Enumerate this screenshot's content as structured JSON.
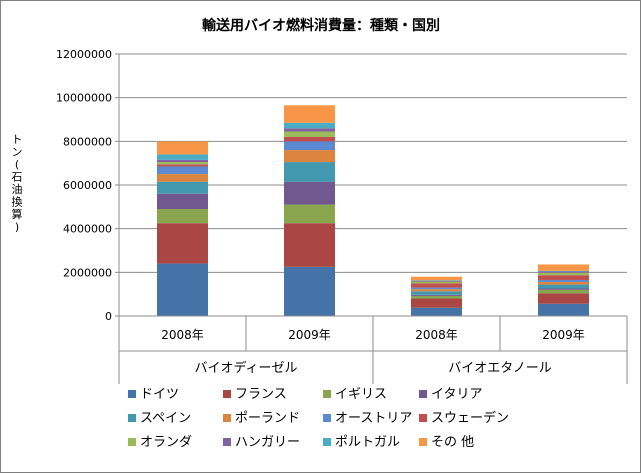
{
  "chart_data": {
    "type": "bar",
    "stacked": true,
    "title": "輸送用バイオ燃料消費量：種類・国別",
    "ylabel": "トン(石油換算)",
    "ylim": [
      0,
      12000000
    ],
    "yticks": [
      "0",
      "2000000",
      "4000000",
      "6000000",
      "8000000",
      "10000000",
      "12000000"
    ],
    "grid": true,
    "legend_position": "bottom",
    "groups": [
      {
        "label": "バイオディーゼル",
        "categories": [
          "2008年",
          "2009年"
        ]
      },
      {
        "label": "バイオエタノール",
        "categories": [
          "2008年",
          "2009年"
        ]
      }
    ],
    "categories": [
      "2008年",
      "2009年",
      "2008年",
      "2009年"
    ],
    "series": [
      {
        "name": "ドイツ",
        "color": "#4572a7",
        "values": [
          2400000,
          2250000,
          380000,
          560000
        ]
      },
      {
        "name": "フランス",
        "color": "#aa4643",
        "values": [
          1850000,
          2000000,
          420000,
          480000
        ]
      },
      {
        "name": "イギリス",
        "color": "#89a54e",
        "values": [
          650000,
          850000,
          120000,
          160000
        ]
      },
      {
        "name": "イタリア",
        "color": "#71588f",
        "values": [
          700000,
          1050000,
          50000,
          60000
        ]
      },
      {
        "name": "スペイン",
        "color": "#4198af",
        "values": [
          550000,
          900000,
          160000,
          180000
        ]
      },
      {
        "name": "ポーランド",
        "color": "#db843d",
        "values": [
          350000,
          550000,
          100000,
          120000
        ]
      },
      {
        "name": "オーストリア",
        "color": "#5b8ad3",
        "values": [
          350000,
          400000,
          70000,
          90000
        ]
      },
      {
        "name": "スウェーデン",
        "color": "#c0504d",
        "values": [
          100000,
          200000,
          200000,
          220000
        ]
      },
      {
        "name": "オランダ",
        "color": "#9bbb59",
        "values": [
          100000,
          250000,
          80000,
          110000
        ]
      },
      {
        "name": "ハンガリー",
        "color": "#8064a2",
        "values": [
          100000,
          150000,
          40000,
          60000
        ]
      },
      {
        "name": "ポルトガル",
        "color": "#4bacc6",
        "values": [
          250000,
          250000,
          20000,
          30000
        ]
      },
      {
        "name": "その 他",
        "color": "#f79646",
        "values": [
          600000,
          800000,
          160000,
          290000
        ]
      }
    ]
  }
}
